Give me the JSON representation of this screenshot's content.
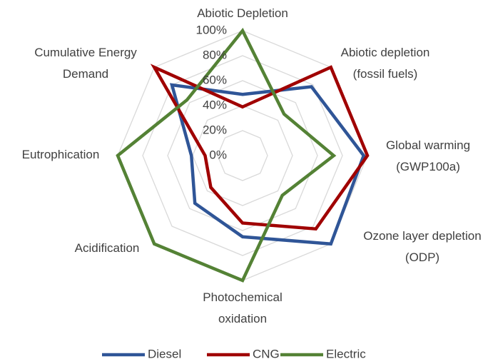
{
  "chart_data": {
    "type": "radar",
    "categories": [
      [
        "Abiotic Depletion"
      ],
      [
        "Abiotic depletion",
        "(fossil fuels)"
      ],
      [
        "Global warming",
        "(GWP100a)"
      ],
      [
        "Ozone layer depletion",
        "(ODP)"
      ],
      [
        "Photochemical",
        "oxidation"
      ],
      [
        "Acidification"
      ],
      [
        "Eutrophication"
      ],
      [
        "Cumulative Energy",
        "Demand"
      ]
    ],
    "series": [
      {
        "name": "Diesel",
        "color": "#2f5597",
        "values": [
          49,
          78,
          97,
          100,
          65,
          54,
          41,
          80
        ]
      },
      {
        "name": "CNG",
        "color": "#a00000",
        "values": [
          39,
          100,
          100,
          83,
          54,
          36,
          30,
          100
        ]
      },
      {
        "name": "Electric",
        "color": "#548235",
        "values": [
          100,
          47,
          73,
          45,
          100,
          100,
          100,
          63
        ]
      }
    ],
    "ylim": [
      0,
      100
    ],
    "yticks": [
      {
        "value": 0,
        "label": "0%"
      },
      {
        "value": 20,
        "label": "20%"
      },
      {
        "value": 40,
        "label": "40%"
      },
      {
        "value": 60,
        "label": "60%"
      },
      {
        "value": 80,
        "label": "80%"
      },
      {
        "value": 100,
        "label": "100%"
      }
    ],
    "grid": true,
    "legend": "bottom"
  }
}
